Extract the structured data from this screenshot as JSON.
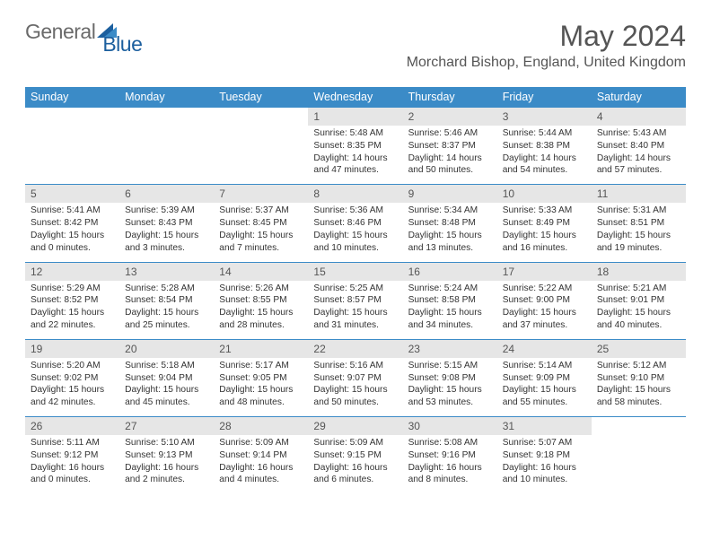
{
  "brand": {
    "part1": "General",
    "part2": "Blue"
  },
  "title": "May 2024",
  "location": "Morchard Bishop, England, United Kingdom",
  "colors": {
    "header_bg": "#3b8bc7",
    "header_text": "#ffffff",
    "day_bg": "#e6e6e6",
    "border": "#3b8bc7",
    "body_text": "#333333",
    "title_text": "#555555"
  },
  "weekdays": [
    "Sunday",
    "Monday",
    "Tuesday",
    "Wednesday",
    "Thursday",
    "Friday",
    "Saturday"
  ],
  "weeks": [
    [
      null,
      null,
      null,
      {
        "n": "1",
        "rise": "Sunrise: 5:48 AM",
        "set": "Sunset: 8:35 PM",
        "d1": "Daylight: 14 hours",
        "d2": "and 47 minutes."
      },
      {
        "n": "2",
        "rise": "Sunrise: 5:46 AM",
        "set": "Sunset: 8:37 PM",
        "d1": "Daylight: 14 hours",
        "d2": "and 50 minutes."
      },
      {
        "n": "3",
        "rise": "Sunrise: 5:44 AM",
        "set": "Sunset: 8:38 PM",
        "d1": "Daylight: 14 hours",
        "d2": "and 54 minutes."
      },
      {
        "n": "4",
        "rise": "Sunrise: 5:43 AM",
        "set": "Sunset: 8:40 PM",
        "d1": "Daylight: 14 hours",
        "d2": "and 57 minutes."
      }
    ],
    [
      {
        "n": "5",
        "rise": "Sunrise: 5:41 AM",
        "set": "Sunset: 8:42 PM",
        "d1": "Daylight: 15 hours",
        "d2": "and 0 minutes."
      },
      {
        "n": "6",
        "rise": "Sunrise: 5:39 AM",
        "set": "Sunset: 8:43 PM",
        "d1": "Daylight: 15 hours",
        "d2": "and 3 minutes."
      },
      {
        "n": "7",
        "rise": "Sunrise: 5:37 AM",
        "set": "Sunset: 8:45 PM",
        "d1": "Daylight: 15 hours",
        "d2": "and 7 minutes."
      },
      {
        "n": "8",
        "rise": "Sunrise: 5:36 AM",
        "set": "Sunset: 8:46 PM",
        "d1": "Daylight: 15 hours",
        "d2": "and 10 minutes."
      },
      {
        "n": "9",
        "rise": "Sunrise: 5:34 AM",
        "set": "Sunset: 8:48 PM",
        "d1": "Daylight: 15 hours",
        "d2": "and 13 minutes."
      },
      {
        "n": "10",
        "rise": "Sunrise: 5:33 AM",
        "set": "Sunset: 8:49 PM",
        "d1": "Daylight: 15 hours",
        "d2": "and 16 minutes."
      },
      {
        "n": "11",
        "rise": "Sunrise: 5:31 AM",
        "set": "Sunset: 8:51 PM",
        "d1": "Daylight: 15 hours",
        "d2": "and 19 minutes."
      }
    ],
    [
      {
        "n": "12",
        "rise": "Sunrise: 5:29 AM",
        "set": "Sunset: 8:52 PM",
        "d1": "Daylight: 15 hours",
        "d2": "and 22 minutes."
      },
      {
        "n": "13",
        "rise": "Sunrise: 5:28 AM",
        "set": "Sunset: 8:54 PM",
        "d1": "Daylight: 15 hours",
        "d2": "and 25 minutes."
      },
      {
        "n": "14",
        "rise": "Sunrise: 5:26 AM",
        "set": "Sunset: 8:55 PM",
        "d1": "Daylight: 15 hours",
        "d2": "and 28 minutes."
      },
      {
        "n": "15",
        "rise": "Sunrise: 5:25 AM",
        "set": "Sunset: 8:57 PM",
        "d1": "Daylight: 15 hours",
        "d2": "and 31 minutes."
      },
      {
        "n": "16",
        "rise": "Sunrise: 5:24 AM",
        "set": "Sunset: 8:58 PM",
        "d1": "Daylight: 15 hours",
        "d2": "and 34 minutes."
      },
      {
        "n": "17",
        "rise": "Sunrise: 5:22 AM",
        "set": "Sunset: 9:00 PM",
        "d1": "Daylight: 15 hours",
        "d2": "and 37 minutes."
      },
      {
        "n": "18",
        "rise": "Sunrise: 5:21 AM",
        "set": "Sunset: 9:01 PM",
        "d1": "Daylight: 15 hours",
        "d2": "and 40 minutes."
      }
    ],
    [
      {
        "n": "19",
        "rise": "Sunrise: 5:20 AM",
        "set": "Sunset: 9:02 PM",
        "d1": "Daylight: 15 hours",
        "d2": "and 42 minutes."
      },
      {
        "n": "20",
        "rise": "Sunrise: 5:18 AM",
        "set": "Sunset: 9:04 PM",
        "d1": "Daylight: 15 hours",
        "d2": "and 45 minutes."
      },
      {
        "n": "21",
        "rise": "Sunrise: 5:17 AM",
        "set": "Sunset: 9:05 PM",
        "d1": "Daylight: 15 hours",
        "d2": "and 48 minutes."
      },
      {
        "n": "22",
        "rise": "Sunrise: 5:16 AM",
        "set": "Sunset: 9:07 PM",
        "d1": "Daylight: 15 hours",
        "d2": "and 50 minutes."
      },
      {
        "n": "23",
        "rise": "Sunrise: 5:15 AM",
        "set": "Sunset: 9:08 PM",
        "d1": "Daylight: 15 hours",
        "d2": "and 53 minutes."
      },
      {
        "n": "24",
        "rise": "Sunrise: 5:14 AM",
        "set": "Sunset: 9:09 PM",
        "d1": "Daylight: 15 hours",
        "d2": "and 55 minutes."
      },
      {
        "n": "25",
        "rise": "Sunrise: 5:12 AM",
        "set": "Sunset: 9:10 PM",
        "d1": "Daylight: 15 hours",
        "d2": "and 58 minutes."
      }
    ],
    [
      {
        "n": "26",
        "rise": "Sunrise: 5:11 AM",
        "set": "Sunset: 9:12 PM",
        "d1": "Daylight: 16 hours",
        "d2": "and 0 minutes."
      },
      {
        "n": "27",
        "rise": "Sunrise: 5:10 AM",
        "set": "Sunset: 9:13 PM",
        "d1": "Daylight: 16 hours",
        "d2": "and 2 minutes."
      },
      {
        "n": "28",
        "rise": "Sunrise: 5:09 AM",
        "set": "Sunset: 9:14 PM",
        "d1": "Daylight: 16 hours",
        "d2": "and 4 minutes."
      },
      {
        "n": "29",
        "rise": "Sunrise: 5:09 AM",
        "set": "Sunset: 9:15 PM",
        "d1": "Daylight: 16 hours",
        "d2": "and 6 minutes."
      },
      {
        "n": "30",
        "rise": "Sunrise: 5:08 AM",
        "set": "Sunset: 9:16 PM",
        "d1": "Daylight: 16 hours",
        "d2": "and 8 minutes."
      },
      {
        "n": "31",
        "rise": "Sunrise: 5:07 AM",
        "set": "Sunset: 9:18 PM",
        "d1": "Daylight: 16 hours",
        "d2": "and 10 minutes."
      },
      null
    ]
  ]
}
